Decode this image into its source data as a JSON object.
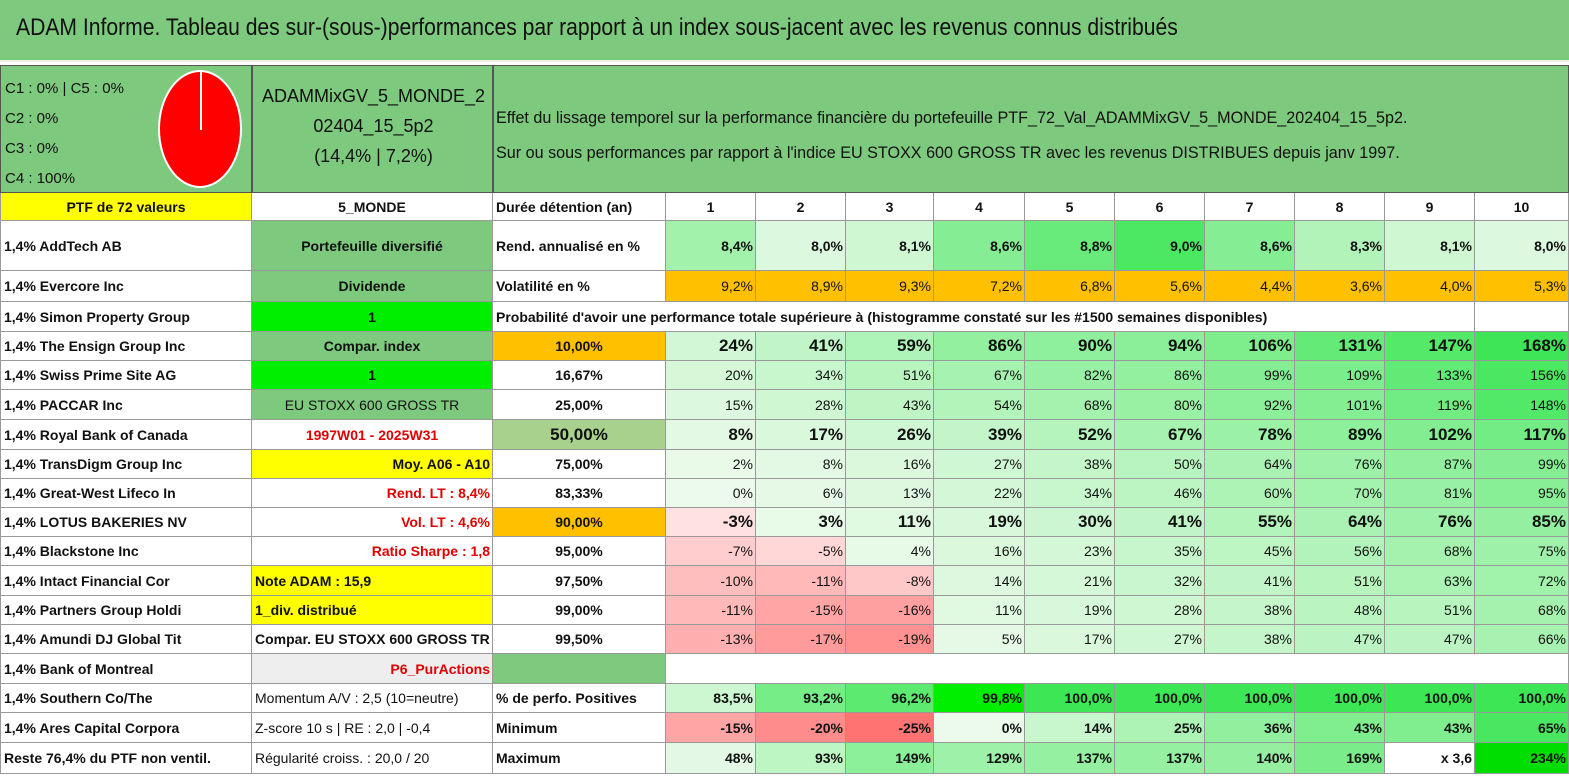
{
  "title": "ADAM Informe. Tableau des sur-(sous-)performances par rapport à un index sous-jacent avec les revenus connus distribués",
  "legend": [
    "C1 : 0% | C5 : 0%",
    "C2 : 0%",
    "C3 : 0%",
    "C4 : 100%"
  ],
  "portfolio": {
    "line1": "ADAMMixGV_5_MONDE_2",
    "line2": "02404_15_5p2",
    "line3": "(14,4% | 7,2%)"
  },
  "description": {
    "line1": "Effet du lissage temporel sur la performance financière du portefeuille PTF_72_Val_ADAMMixGV_5_MONDE_202404_15_5p2.",
    "line2": "Sur ou sous performances par rapport à l'indice EU STOXX 600 GROSS TR avec les revenus DISTRIBUES depuis janv 1997."
  },
  "colors": {
    "title_bg": "#7dc97d",
    "yellow": "#ffff00",
    "orange": "#ffc000",
    "bright_green": "#00ee00",
    "red_text": "#e00000"
  },
  "left_col": [
    "PTF de 72 valeurs",
    "1,4% AddTech AB",
    "1,4% Evercore Inc",
    "1,4% Simon Property Group",
    "1,4% The Ensign Group Inc",
    "1,4% Swiss Prime Site AG",
    "1,4% PACCAR Inc",
    "1,4% Royal Bank of Canada",
    "1,4% TransDigm Group Inc",
    "1,4% Great-West Lifeco In",
    "1,4% LOTUS BAKERIES NV",
    "1,4% Blackstone Inc",
    "1,4% Intact Financial Cor",
    "1,4% Partners Group Holdi",
    "1,4% Amundi DJ Global Tit",
    "1,4% Bank of Montreal",
    "1,4% Southern Co/The",
    "1,4% Ares Capital Corpora",
    "Reste 76,4% du PTF non ventil."
  ],
  "mid_col": [
    "5_MONDE",
    "Portefeuille diversifié",
    "Dividende",
    "1",
    "Compar. index",
    "1",
    "EU STOXX 600 GROSS TR",
    "1997W01 - 2025W31",
    "Moy. A06 - A10",
    "Rend. LT : 8,4%",
    "Vol. LT : 4,6%",
    "Ratio Sharpe : 1,8",
    "Note ADAM : 15,9",
    "1_div. distribué",
    "Compar. EU STOXX 600 GROSS TR",
    "P6_PurActions",
    "Momentum A/V : 2,5 (10=neutre)",
    "Z-score 10 s | RE : 2,0 | -0,4",
    "Régularité croiss. : 20,0 / 20"
  ],
  "row_labels": [
    "Durée détention (an)",
    "Rend. annualisé en %",
    "Volatilité en %",
    "Probabilité d'avoir une performance totale supérieure à (histogramme constaté sur les #1500 semaines disponibles)",
    "10,00%",
    "16,67%",
    "25,00%",
    "50,00%",
    "75,00%",
    "83,33%",
    "90,00%",
    "95,00%",
    "97,50%",
    "99,00%",
    "99,50%",
    "",
    "% de perfo. Positives",
    "Minimum",
    "Maximum"
  ],
  "grid": [
    [
      "1",
      "2",
      "3",
      "4",
      "5",
      "6",
      "7",
      "8",
      "9",
      "10"
    ],
    [
      "8,4%",
      "8,0%",
      "8,1%",
      "8,6%",
      "8,8%",
      "9,0%",
      "8,6%",
      "8,3%",
      "8,1%",
      "8,0%"
    ],
    [
      "9,2%",
      "8,9%",
      "9,3%",
      "7,2%",
      "6,8%",
      "5,6%",
      "4,4%",
      "3,6%",
      "4,0%",
      "5,3%"
    ],
    [],
    [
      "24%",
      "41%",
      "59%",
      "86%",
      "90%",
      "94%",
      "106%",
      "131%",
      "147%",
      "168%"
    ],
    [
      "20%",
      "34%",
      "51%",
      "67%",
      "82%",
      "86%",
      "99%",
      "109%",
      "133%",
      "156%"
    ],
    [
      "15%",
      "28%",
      "43%",
      "54%",
      "68%",
      "80%",
      "92%",
      "101%",
      "119%",
      "148%"
    ],
    [
      "8%",
      "17%",
      "26%",
      "39%",
      "52%",
      "67%",
      "78%",
      "89%",
      "102%",
      "117%"
    ],
    [
      "2%",
      "8%",
      "16%",
      "27%",
      "38%",
      "50%",
      "64%",
      "76%",
      "87%",
      "99%"
    ],
    [
      "0%",
      "6%",
      "13%",
      "22%",
      "34%",
      "46%",
      "60%",
      "70%",
      "81%",
      "95%"
    ],
    [
      "-3%",
      "3%",
      "11%",
      "19%",
      "30%",
      "41%",
      "55%",
      "64%",
      "76%",
      "85%"
    ],
    [
      "-7%",
      "-5%",
      "4%",
      "16%",
      "23%",
      "35%",
      "45%",
      "56%",
      "68%",
      "75%"
    ],
    [
      "-10%",
      "-11%",
      "-8%",
      "14%",
      "21%",
      "32%",
      "41%",
      "51%",
      "63%",
      "72%"
    ],
    [
      "-11%",
      "-15%",
      "-16%",
      "11%",
      "19%",
      "28%",
      "38%",
      "48%",
      "51%",
      "68%"
    ],
    [
      "-13%",
      "-17%",
      "-19%",
      "5%",
      "17%",
      "27%",
      "38%",
      "47%",
      "47%",
      "66%"
    ],
    [],
    [
      "83,5%",
      "93,2%",
      "96,2%",
      "99,8%",
      "100,0%",
      "100,0%",
      "100,0%",
      "100,0%",
      "100,0%",
      "100,0%"
    ],
    [
      "-15%",
      "-20%",
      "-25%",
      "0%",
      "14%",
      "25%",
      "36%",
      "43%",
      "43%",
      "65%"
    ],
    [
      "48%",
      "93%",
      "149%",
      "129%",
      "137%",
      "137%",
      "140%",
      "169%",
      "x 3,6",
      "234%"
    ]
  ]
}
